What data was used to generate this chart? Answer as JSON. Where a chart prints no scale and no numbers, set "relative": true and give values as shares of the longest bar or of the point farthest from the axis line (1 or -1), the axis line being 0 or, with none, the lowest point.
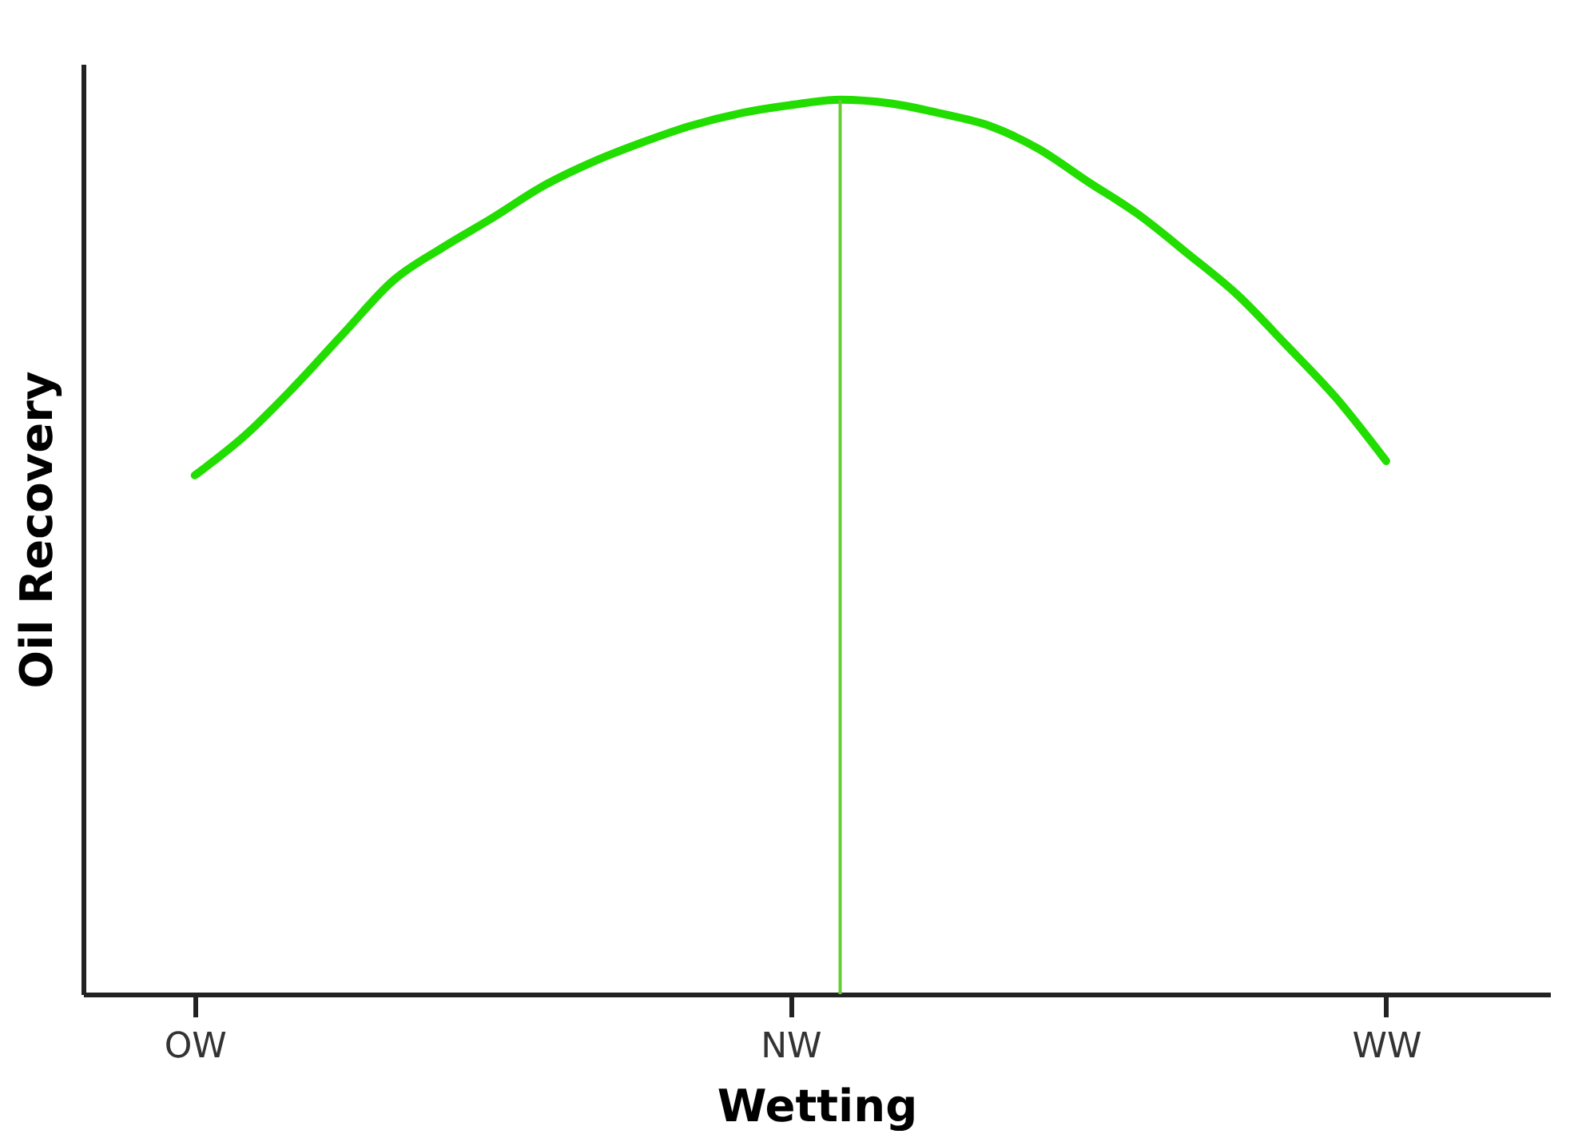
{
  "chart_data": {
    "type": "line",
    "xlabel": "Wetting",
    "ylabel": "Oil Recovery",
    "relative": true,
    "categories": [
      "OW",
      null,
      null,
      null,
      null,
      null,
      null,
      null,
      null,
      null,
      null,
      null,
      "NW",
      null,
      null,
      null,
      null,
      null,
      null,
      null,
      null,
      null,
      null,
      null,
      "WW"
    ],
    "series": [
      {
        "color": "#22dd00",
        "values": [
          0.58,
          0.624,
          0.679,
          0.739,
          0.798,
          0.835,
          0.868,
          0.903,
          0.93,
          0.952,
          0.971,
          0.985,
          0.994,
          1,
          0.996,
          0.985,
          0.971,
          0.945,
          0.908,
          0.872,
          0.828,
          0.782,
          0.725,
          0.666,
          0.596
        ]
      }
    ],
    "grid": false,
    "tick_labels": "x",
    "marker": "none",
    "line_style": "solid"
  }
}
